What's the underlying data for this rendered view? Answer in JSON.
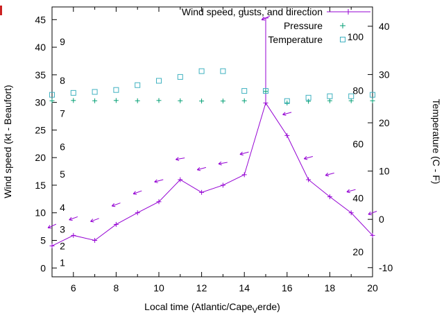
{
  "page": {
    "background": "#ffffff"
  },
  "chart_data": {
    "type": "line",
    "title": "",
    "legend": [
      {
        "label": "Wind speed, gusts, and direction",
        "marker": "line-plus",
        "color": "#9400d3"
      },
      {
        "label": "Pressure",
        "marker": "plus",
        "color": "#009e73"
      },
      {
        "label": "Temperature",
        "marker": "square",
        "color": "#3fb1c0"
      }
    ],
    "x_axis": {
      "label_pre": "Local time (Atlantic/Cape",
      "label_sub": "V",
      "label_post": "erde)",
      "range": [
        5,
        20
      ],
      "major_ticks": [
        6,
        8,
        10,
        12,
        14,
        16,
        18,
        20
      ],
      "minor_ticks": [
        5,
        7,
        9,
        11,
        13,
        15,
        17,
        19
      ]
    },
    "y_axis_left": {
      "label": "Wind speed (kt - Beaufort)",
      "range": [
        -1.6,
        47.3
      ],
      "ticks": [
        0,
        5,
        10,
        15,
        20,
        25,
        30,
        35,
        40,
        45
      ],
      "beaufort_labels": [
        {
          "text": "1",
          "kt": 1
        },
        {
          "text": "2",
          "kt": 4
        },
        {
          "text": "3",
          "kt": 7
        },
        {
          "text": "4",
          "kt": 11
        },
        {
          "text": "5",
          "kt": 17
        },
        {
          "text": "6",
          "kt": 22
        },
        {
          "text": "7",
          "kt": 28
        },
        {
          "text": "8",
          "kt": 34
        },
        {
          "text": "9",
          "kt": 41
        }
      ]
    },
    "y_axis_right": {
      "label": "Temperature (C - F)",
      "range": [
        -11.9,
        44.0
      ],
      "ticks": [
        -10,
        0,
        10,
        20,
        30,
        40
      ],
      "fahrenheit_labels": [
        {
          "text": "20",
          "c": -6.7
        },
        {
          "text": "40",
          "c": 4.4
        },
        {
          "text": "60",
          "c": 15.6
        },
        {
          "text": "80",
          "c": 26.7
        },
        {
          "text": "100",
          "c": 37.8
        }
      ]
    },
    "hours": [
      5,
      6,
      7,
      8,
      9,
      10,
      11,
      12,
      13,
      14,
      15,
      16,
      17,
      18,
      19,
      20
    ],
    "wind": {
      "color": "#9400d3",
      "speed_kt": [
        4.0,
        5.9,
        5.0,
        7.9,
        10.0,
        12.0,
        16.0,
        13.7,
        15.0,
        16.9,
        29.9,
        24.0,
        16.0,
        12.9,
        10.0,
        5.9
      ],
      "gust_kt": [
        7.6,
        9.0,
        8.7,
        11.5,
        13.7,
        15.8,
        19.8,
        18.0,
        19.0,
        20.8,
        45.3,
        28.0,
        20.0,
        17.0,
        14.0,
        10.0
      ],
      "arrow_angle_deg": [
        205,
        200,
        200,
        200,
        200,
        195,
        190,
        195,
        190,
        195,
        205,
        195,
        195,
        195,
        195,
        200
      ],
      "errorbar_hour": 15,
      "errorbar_low_kt": 29.9,
      "errorbar_high_kt": 45.3
    },
    "pressure": {
      "color": "#009e73",
      "inhg": [
        30.3,
        30.35,
        30.3,
        30.35,
        30.3,
        30.35,
        30.3,
        30.25,
        30.25,
        30.3,
        32.0,
        29.9,
        30.2,
        30.3,
        30.3,
        30.3
      ]
    },
    "temperature": {
      "color": "#3fb1c0",
      "c": [
        25.8,
        26.2,
        26.4,
        26.8,
        27.8,
        28.7,
        29.5,
        30.7,
        30.7,
        26.6,
        26.6,
        24.5,
        25.2,
        25.5,
        25.5,
        25.8
      ]
    },
    "edge_marker_color": "#cc2222"
  }
}
